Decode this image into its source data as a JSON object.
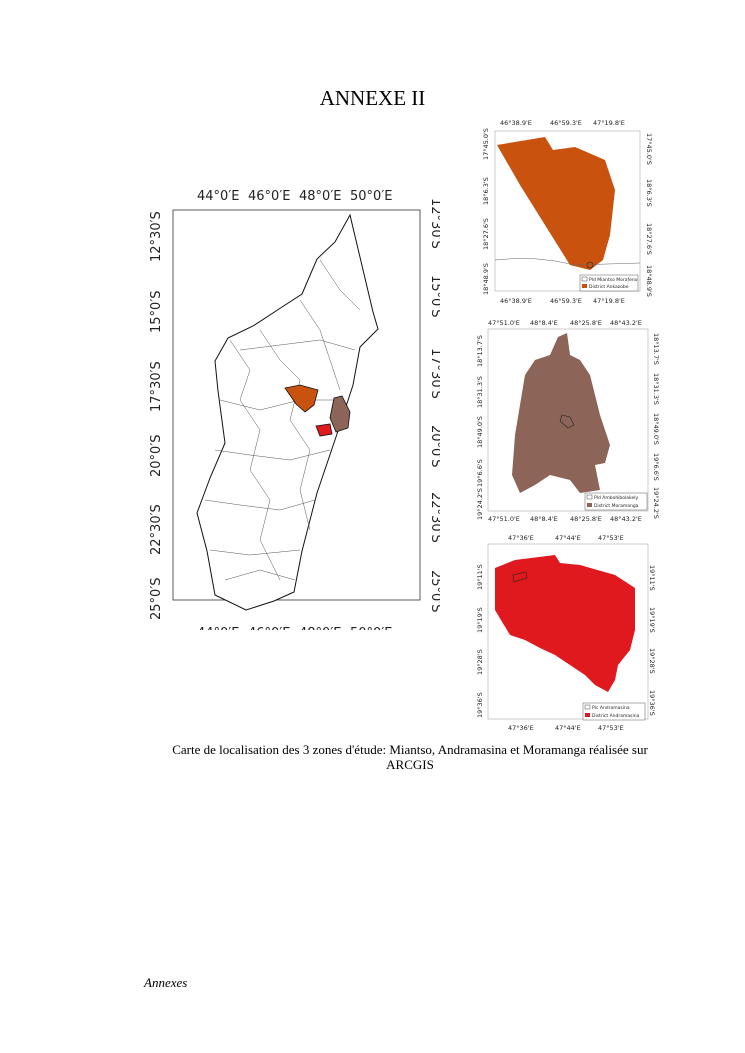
{
  "title": "ANNEXE II",
  "main_map": {
    "lon_ticks": [
      "44°0′E",
      "46°0′E",
      "48°0′E",
      "50°0′E"
    ],
    "lat_ticks": [
      "12°30′S",
      "15°0′S",
      "17°30′S",
      "20°0′S",
      "22°30′S",
      "25°0′S"
    ]
  },
  "inset_maps": [
    {
      "lon_ticks": [
        "46°38.9'E",
        "46°59.3'E",
        "47°19.8'E"
      ],
      "lat_ticks": [
        "17°45.0'S",
        "18°6.3'S",
        "18°27.6'S",
        "18°48.9'S"
      ],
      "legend": [
        "Pld Miantso Morafeno",
        "District Ankazobe"
      ],
      "fill": "#c8520e"
    },
    {
      "lon_ticks": [
        "47°51.0'E",
        "48°8.4'E",
        "48°25.8'E",
        "48°43.2'E"
      ],
      "lat_ticks": [
        "18°13.7'S",
        "18°31.3'S",
        "18°49.0'S",
        "19°6.6'S",
        "19°24.2'S"
      ],
      "legend": [
        "Pld Ambohibolakely",
        "District Moramanga"
      ],
      "fill": "#8c6458"
    },
    {
      "lon_ticks": [
        "47°36'E",
        "47°44'E",
        "47°53'E"
      ],
      "lat_ticks": [
        "19°11'S",
        "19°19'S",
        "19°28'S",
        "19°36'S"
      ],
      "legend": [
        "Plc Andramasina",
        "District Andramasina"
      ],
      "fill": "#e0191e"
    }
  ],
  "caption": "Carte de localisation des 3 zones d'étude: Miantso, Andramasina et Moramanga réalisée sur ARCGIS",
  "footer": "Annexes"
}
